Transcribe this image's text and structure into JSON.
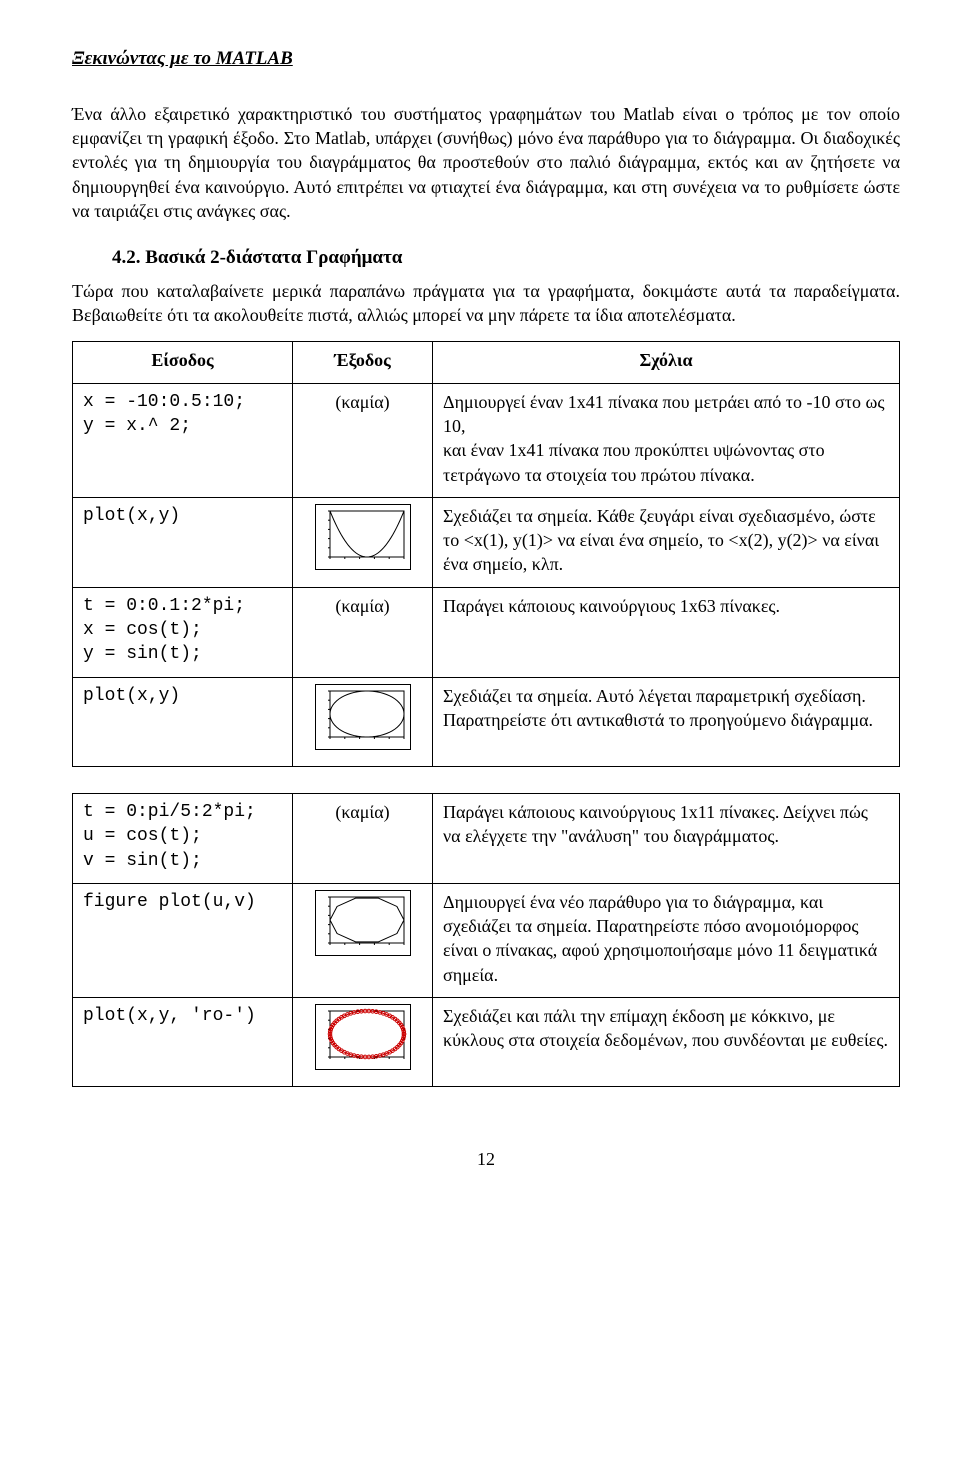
{
  "header": "Ξεκινώντας με το MATLAB",
  "intro": "Ένα άλλο εξαιρετικό χαρακτηριστικό του συστήματος γραφημάτων του Matlab είναι ο τρόπος με τον οποίο εμφανίζει τη γραφική έξοδο. Στο Matlab, υπάρχει (συνήθως) μόνο ένα παράθυρο για το διάγραμμα. Οι διαδοχικές εντολές για τη δημιουργία του διαγράμματος θα προστεθούν στο παλιό διάγραμμα, εκτός και αν ζητήσετε να δημιουργηθεί ένα καινούργιο. Αυτό επιτρέπει να φτιαχτεί ένα διάγραμμα, και στη συνέχεια να το ρυθμίσετε ώστε να ταιριάζει στις ανάγκες σας.",
  "section_heading": "4.2. Βασικά 2-διάστατα Γραφήματα",
  "section_intro": "Τώρα που καταλαβαίνετε μερικά παραπάνω πράγματα για τα γραφήματα, δοκιμάστε αυτά τα παραδείγματα. Βεβαιωθείτε ότι τα ακολουθείτε πιστά, αλλιώς μπορεί να μην πάρετε τα ίδια αποτελέσματα.",
  "table_headers": {
    "in": "Είσοδος",
    "out": "Έξοδος",
    "cm": "Σχόλια"
  },
  "tableA": {
    "rows": [
      {
        "in": "x = -10:0.5:10;\ny = x.^ 2;",
        "out_text": "(καμία)",
        "comment": "Δημιουργεί έναν 1x41 πίνακα που μετράει από το -10 στο ως 10,\nκαι έναν 1x41 πίνακα που προκύπτει υψώνοντας στο τετράγωνο τα στοιχεία του πρώτου πίνακα."
      },
      {
        "in": "plot(x,y)",
        "plot": "parabola",
        "comment": "Σχεδιάζει τα σημεία. Κάθε ζευγάρι είναι σχεδιασμένο, ώστε το <x(1), y(1)> να είναι ένα σημείο, το <x(2), y(2)> να είναι ένα σημείο, κλπ."
      },
      {
        "in": "t = 0:0.1:2*pi;\nx = cos(t);\ny = sin(t);",
        "out_text": "(καμία)",
        "comment": "Παράγει κάποιους καινούργιους 1x63 πίνακες."
      },
      {
        "in": "plot(x,y)",
        "plot": "circle",
        "comment": "Σχεδιάζει τα σημεία. Αυτό λέγεται παραμετρική σχεδίαση. Παρατηρείστε ότι αντικαθιστά το προηγούμενο διάγραμμα."
      }
    ]
  },
  "tableB": {
    "rows": [
      {
        "in": "t = 0:pi/5:2*pi;\nu = cos(t);\nv = sin(t);",
        "out_text": "(καμία)",
        "comment": "Παράγει κάποιους καινούργιους 1x11 πίνακες. Δείχνει πώς να ελέγχετε την \"ανάλυση\" του διαγράμματος."
      },
      {
        "in": "figure plot(u,v)",
        "plot": "decagon",
        "comment": "Δημιουργεί ένα νέο παράθυρο για το διάγραμμα, και σχεδιάζει τα σημεία. Παρατηρείστε πόσο ανομοιόμορφος είναι ο πίνακας, αφού χρησιμοποιήσαμε μόνο 11 δειγματικά σημεία."
      },
      {
        "in": "plot(x,y, 'ro-')",
        "plot": "circle_ro",
        "comment": "Σχεδιάζει και πάλι την επίμαχη έκδοση με κόκκινο, με κύκλους στα στοιχεία δεδομένων, που συνδέονται με ευθείες."
      }
    ]
  },
  "plots": {
    "w": 90,
    "h": 60,
    "axis_pad": {
      "l": 12,
      "r": 4,
      "t": 4,
      "b": 10
    },
    "stroke": "#000000",
    "stroke_red": "#cc0000",
    "stroke_width": 1,
    "tick_len": 2,
    "n_ticks_x": 5,
    "n_ticks_y": 5
  },
  "page_number": "12"
}
